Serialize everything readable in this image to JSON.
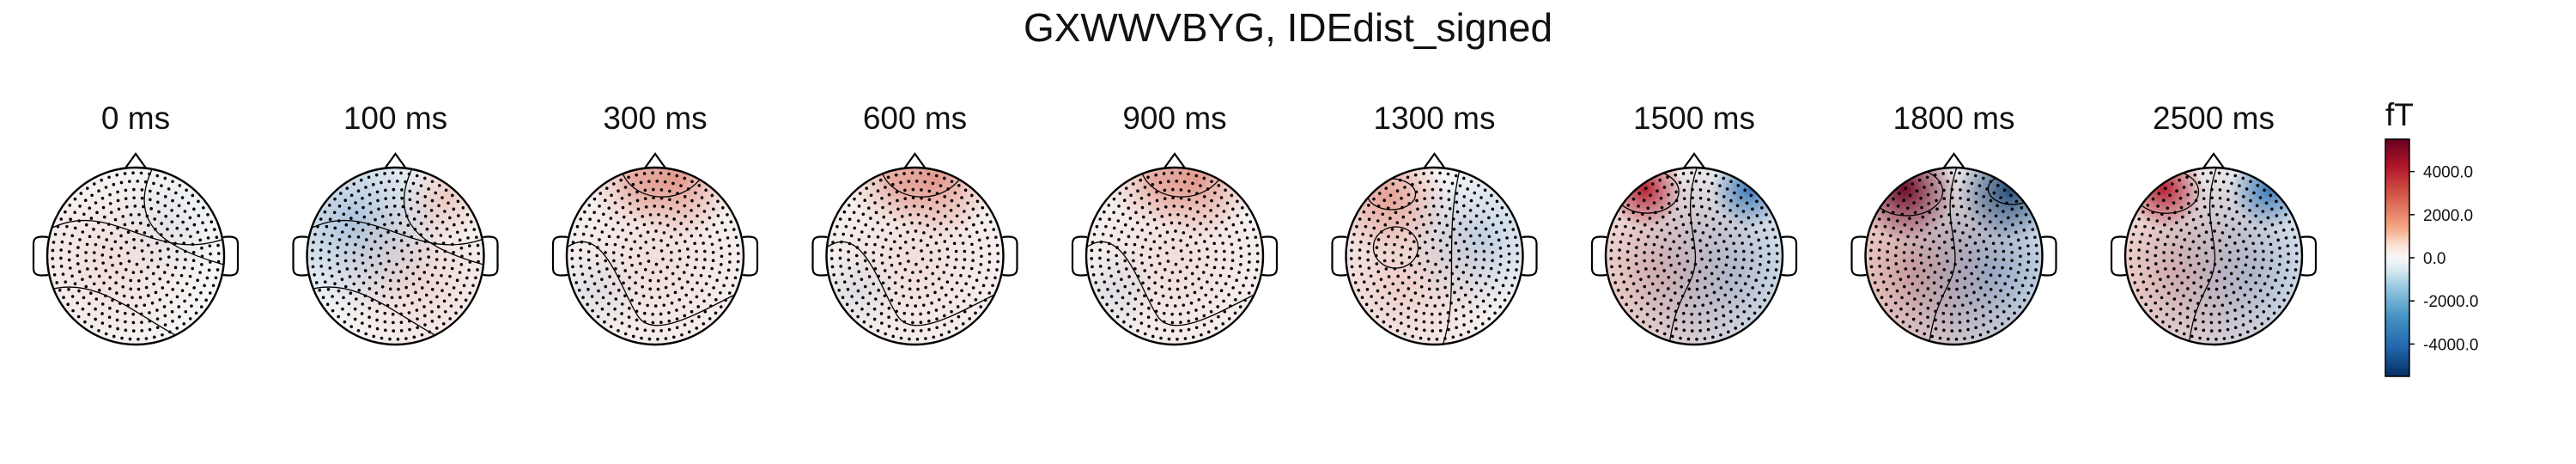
{
  "figure": {
    "title": "GXWWVBYG, IDEdist_signed"
  },
  "chart_data": {
    "type": "heatmap",
    "title": "GXWWVBYG, IDEdist_signed",
    "panels": [
      {
        "label": "0 ms",
        "peak": 600,
        "pattern": "weak"
      },
      {
        "label": "100 ms",
        "peak": 1200,
        "pattern": "blue-left"
      },
      {
        "label": "300 ms",
        "peak": 2000,
        "pattern": "front-red"
      },
      {
        "label": "600 ms",
        "peak": 2000,
        "pattern": "front-red"
      },
      {
        "label": "900 ms",
        "peak": 1800,
        "pattern": "front-red"
      },
      {
        "label": "1300 ms",
        "peak": 1500,
        "pattern": "left-red"
      },
      {
        "label": "1500 ms",
        "peak": 2800,
        "pattern": "dipole"
      },
      {
        "label": "1800 ms",
        "peak": 5500,
        "pattern": "dipole"
      },
      {
        "label": "2500 ms",
        "peak": 3000,
        "pattern": "dipole"
      }
    ],
    "colorbar": {
      "unit": "fT",
      "range": [
        -5500,
        5500
      ],
      "ticks": [
        4000,
        2000,
        0,
        -2000,
        -4000
      ],
      "tick_labels": [
        "4000.0",
        "2000.0",
        "0.0",
        "-2000.0",
        "-4000.0"
      ],
      "colormap": "RdBu_r"
    },
    "colors": {
      "red": "#67001f",
      "white": "#f7f7f7",
      "blue": "#053061"
    }
  }
}
